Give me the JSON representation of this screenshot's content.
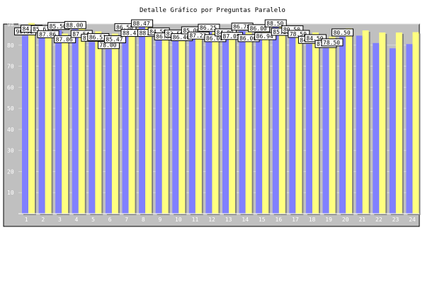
{
  "chart_data": {
    "type": "bar",
    "title": "Detalle Gráfico por Preguntas Paralelo",
    "categories": [
      "1",
      "2",
      "3",
      "4",
      "5",
      "6",
      "7",
      "8",
      "9",
      "10",
      "11",
      "12",
      "13",
      "14",
      "15",
      "16",
      "17",
      "18",
      "19",
      "20",
      "21",
      "22",
      "23",
      "24"
    ],
    "series": [
      {
        "values": [
          84.5,
          85.61,
          87.06,
          87.54,
          81.5,
          78.0,
          86.5,
          88.47,
          84.5,
          83.5,
          85.0,
          86.25,
          84.0,
          86.78,
          86.0,
          88.5,
          85.5,
          80.5,
          78.5,
          84.0,
          84.5,
          81.0,
          78.5,
          80.5
        ],
        "color": "#8080ff"
      },
      {
        "values": [
          90.5,
          87.86,
          85.5,
          88.0,
          86.51,
          85.47,
          88.47,
          88.47,
          86.8,
          86.46,
          87.23,
          86.0,
          87.05,
          86.0,
          86.94,
          89.0,
          88.0,
          86.0,
          84.0,
          88.0,
          87.0,
          86.0,
          86.0,
          86.15
        ],
        "color": "#ffff80"
      }
    ],
    "data_labels": [
      "90.50",
      "84.50",
      "85.61",
      "87.86",
      "85.50",
      "87.06",
      "88.00",
      "87.54",
      "81.50",
      "86.51",
      "78.00",
      "85.47",
      "86.50",
      "88.47",
      "88.47",
      "88.47",
      "84.50",
      "86.80",
      "83.50",
      "86.46",
      "85.00",
      "87.23",
      "86.25",
      "86.00",
      "84.00",
      "87.05",
      "86.78",
      "86.00",
      "86.00",
      "86.94",
      "88.50",
      "85.50",
      "80.50",
      "78.50",
      "84.00",
      "84.50",
      "81.00",
      "78.50",
      "80.50"
    ],
    "y_ticks": [
      "10",
      "20",
      "30",
      "40",
      "50",
      "60",
      "70",
      "80",
      "90"
    ],
    "ylim": [
      0,
      90
    ],
    "grid": true,
    "colors": {
      "plot_bg": "#c0c0c0",
      "frame": "#000000",
      "shadow": "#808080",
      "label_bg": "#ffffff"
    }
  }
}
